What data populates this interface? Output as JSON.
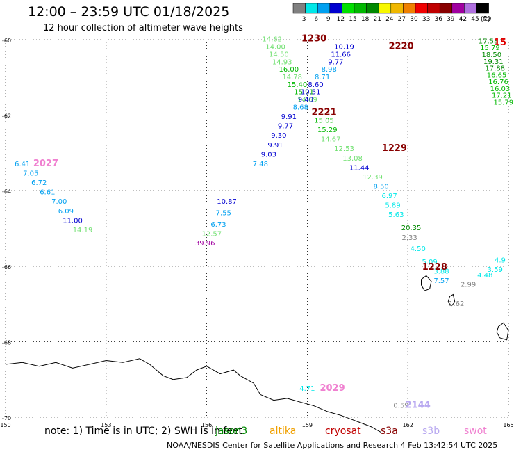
{
  "header": {
    "title": "12:00 – 23:59 UTC 01/18/2025",
    "subtitle": "12 hour collection of altimeter wave heights"
  },
  "legend": {
    "unit": "(ft)",
    "bins": [
      {
        "label": "3",
        "color": "#808080"
      },
      {
        "label": "6",
        "color": "#00e8e8"
      },
      {
        "label": "9",
        "color": "#00a0f0"
      },
      {
        "label": "12",
        "color": "#0000d0"
      },
      {
        "label": "15",
        "color": "#00e000"
      },
      {
        "label": "18",
        "color": "#00b800"
      },
      {
        "label": "21",
        "color": "#008800"
      },
      {
        "label": "24",
        "color": "#f8f800"
      },
      {
        "label": "27",
        "color": "#f0b800"
      },
      {
        "label": "30",
        "color": "#f08000"
      },
      {
        "label": "33",
        "color": "#f00000"
      },
      {
        "label": "36",
        "color": "#c00000"
      },
      {
        "label": "39",
        "color": "#880000"
      },
      {
        "label": "42",
        "color": "#a000a0"
      },
      {
        "label": "45",
        "color": "#b070e0"
      },
      {
        "label": "70",
        "color": "#000000"
      }
    ]
  },
  "axes": {
    "lat_labels": [
      "-60",
      "-62",
      "-64",
      "-66",
      "-68",
      "-70"
    ],
    "lon_labels": [
      "150",
      "153",
      "156",
      "159",
      "162",
      "165"
    ]
  },
  "map": {
    "lon_range": [
      150,
      165
    ],
    "lat_range": [
      -70,
      -60
    ],
    "time_labels": [
      {
        "text": "1230",
        "lon": 159.2,
        "lat": -60.05,
        "color": "#880000"
      },
      {
        "text": "2220",
        "lon": 161.8,
        "lat": -60.25,
        "color": "#880000"
      },
      {
        "text": "2221",
        "lon": 159.5,
        "lat": -62.0,
        "color": "#880000"
      },
      {
        "text": "1229",
        "lon": 161.6,
        "lat": -62.95,
        "color": "#880000"
      },
      {
        "text": "2027",
        "lon": 151.2,
        "lat": -63.35,
        "color": "#f080d0"
      },
      {
        "text": "1228",
        "lon": 162.8,
        "lat": -66.1,
        "color": "#880000"
      },
      {
        "text": "2029",
        "lon": 159.75,
        "lat": -69.3,
        "color": "#f080d0"
      },
      {
        "text": "2144",
        "lon": 162.3,
        "lat": -69.75,
        "color": "#b8a8f0"
      },
      {
        "text": "15",
        "lon": 164.75,
        "lat": -60.15,
        "color": "#e00000"
      }
    ],
    "swh_points": [
      {
        "v": "14.62",
        "lon": 157.95,
        "lat": -60.05,
        "c": "#70e070"
      },
      {
        "v": "14.00",
        "lon": 158.05,
        "lat": -60.25,
        "c": "#70e070"
      },
      {
        "v": "14.50",
        "lon": 158.15,
        "lat": -60.45,
        "c": "#70e070"
      },
      {
        "v": "14.93",
        "lon": 158.25,
        "lat": -60.65,
        "c": "#70e070"
      },
      {
        "v": "16.00",
        "lon": 158.45,
        "lat": -60.85,
        "c": "#00b800"
      },
      {
        "v": "14.78",
        "lon": 158.55,
        "lat": -61.05,
        "c": "#70e070"
      },
      {
        "v": "15.40",
        "lon": 158.7,
        "lat": -61.25,
        "c": "#00b800"
      },
      {
        "v": "15.91",
        "lon": 158.9,
        "lat": -61.45,
        "c": "#00b800"
      },
      {
        "v": "14.69",
        "lon": 159.0,
        "lat": -61.65,
        "c": "#70e070"
      },
      {
        "v": "15.05",
        "lon": 159.5,
        "lat": -62.2,
        "c": "#00b800"
      },
      {
        "v": "15.29",
        "lon": 159.6,
        "lat": -62.45,
        "c": "#00b800"
      },
      {
        "v": "14.67",
        "lon": 159.7,
        "lat": -62.7,
        "c": "#70e070"
      },
      {
        "v": "12.53",
        "lon": 160.1,
        "lat": -62.95,
        "c": "#70e070"
      },
      {
        "v": "13.08",
        "lon": 160.35,
        "lat": -63.2,
        "c": "#70e070"
      },
      {
        "v": "11.44",
        "lon": 160.55,
        "lat": -63.45,
        "c": "#0000d0"
      },
      {
        "v": "12.39",
        "lon": 160.95,
        "lat": -63.7,
        "c": "#70e070"
      },
      {
        "v": "8.50",
        "lon": 161.2,
        "lat": -63.95,
        "c": "#00a0f0"
      },
      {
        "v": "6.97",
        "lon": 161.45,
        "lat": -64.2,
        "c": "#00e8e8"
      },
      {
        "v": "5.89",
        "lon": 161.55,
        "lat": -64.45,
        "c": "#00e8e8"
      },
      {
        "v": "5.63",
        "lon": 161.65,
        "lat": -64.7,
        "c": "#00e8e8"
      },
      {
        "v": "20.35",
        "lon": 162.1,
        "lat": -65.05,
        "c": "#008800"
      },
      {
        "v": "2.33",
        "lon": 162.05,
        "lat": -65.3,
        "c": "#808080"
      },
      {
        "v": "4.50",
        "lon": 162.3,
        "lat": -65.6,
        "c": "#00e8e8"
      },
      {
        "v": "5.09",
        "lon": 162.65,
        "lat": -65.95,
        "c": "#00e8e8"
      },
      {
        "v": "3.88",
        "lon": 163.0,
        "lat": -66.2,
        "c": "#00e8e8"
      },
      {
        "v": "7.57",
        "lon": 163.0,
        "lat": -66.45,
        "c": "#00a0f0"
      },
      {
        "v": "2.99",
        "lon": 163.8,
        "lat": -66.55,
        "c": "#808080"
      },
      {
        "v": "1.62",
        "lon": 163.45,
        "lat": -67.05,
        "c": "#808080"
      },
      {
        "v": "4.48",
        "lon": 164.3,
        "lat": -66.3,
        "c": "#00e8e8"
      },
      {
        "v": "3.59",
        "lon": 164.6,
        "lat": -66.15,
        "c": "#00e8e8"
      },
      {
        "v": "4.9",
        "lon": 164.75,
        "lat": -65.9,
        "c": "#00e8e8"
      },
      {
        "v": "10.19",
        "lon": 160.1,
        "lat": -60.25,
        "c": "#0000d0"
      },
      {
        "v": "11.66",
        "lon": 160.0,
        "lat": -60.45,
        "c": "#0000d0"
      },
      {
        "v": "9.77",
        "lon": 159.85,
        "lat": -60.65,
        "c": "#0000d0"
      },
      {
        "v": "8.98",
        "lon": 159.65,
        "lat": -60.85,
        "c": "#00a0f0"
      },
      {
        "v": "8.71",
        "lon": 159.45,
        "lat": -61.05,
        "c": "#00a0f0"
      },
      {
        "v": "8.60",
        "lon": 159.25,
        "lat": -61.25,
        "c": "#0000d0"
      },
      {
        "v": "10.51",
        "lon": 159.1,
        "lat": -61.45,
        "c": "#0000d0"
      },
      {
        "v": "9.40",
        "lon": 158.95,
        "lat": -61.65,
        "c": "#0000d0"
      },
      {
        "v": "8.68",
        "lon": 158.8,
        "lat": -61.85,
        "c": "#00a0f0"
      },
      {
        "v": "9.91",
        "lon": 158.45,
        "lat": -62.1,
        "c": "#0000d0"
      },
      {
        "v": "9.77",
        "lon": 158.35,
        "lat": -62.35,
        "c": "#0000d0"
      },
      {
        "v": "9.30",
        "lon": 158.15,
        "lat": -62.6,
        "c": "#0000d0"
      },
      {
        "v": "9.91",
        "lon": 158.05,
        "lat": -62.85,
        "c": "#0000d0"
      },
      {
        "v": "9.03",
        "lon": 157.85,
        "lat": -63.1,
        "c": "#0000d0"
      },
      {
        "v": "7.48",
        "lon": 157.6,
        "lat": -63.35,
        "c": "#00a0f0"
      },
      {
        "v": "6.41",
        "lon": 150.5,
        "lat": -63.35,
        "c": "#00a0f0"
      },
      {
        "v": "7.05",
        "lon": 150.75,
        "lat": -63.6,
        "c": "#00a0f0"
      },
      {
        "v": "6.72",
        "lon": 151.0,
        "lat": -63.85,
        "c": "#00a0f0"
      },
      {
        "v": "6.61",
        "lon": 151.25,
        "lat": -64.1,
        "c": "#00a0f0"
      },
      {
        "v": "7.00",
        "lon": 151.6,
        "lat": -64.35,
        "c": "#00a0f0"
      },
      {
        "v": "6.09",
        "lon": 151.8,
        "lat": -64.6,
        "c": "#00a0f0"
      },
      {
        "v": "11.00",
        "lon": 152.0,
        "lat": -64.85,
        "c": "#0000d0"
      },
      {
        "v": "14.19",
        "lon": 152.3,
        "lat": -65.1,
        "c": "#70e070"
      },
      {
        "v": "10.87",
        "lon": 156.6,
        "lat": -64.35,
        "c": "#0000d0"
      },
      {
        "v": "7.55",
        "lon": 156.5,
        "lat": -64.65,
        "c": "#00a0f0"
      },
      {
        "v": "6.73",
        "lon": 156.35,
        "lat": -64.95,
        "c": "#00a0f0"
      },
      {
        "v": "12.57",
        "lon": 156.15,
        "lat": -65.2,
        "c": "#70e070"
      },
      {
        "v": "39.96",
        "lon": 155.95,
        "lat": -65.45,
        "c": "#a000a0"
      },
      {
        "v": "4.71",
        "lon": 159.0,
        "lat": -69.3,
        "c": "#00e8e8"
      },
      {
        "v": "0.59",
        "lon": 161.8,
        "lat": -69.75,
        "c": "#808080"
      },
      {
        "v": "17.58",
        "lon": 164.4,
        "lat": -60.1,
        "c": "#008800"
      },
      {
        "v": "15.79",
        "lon": 164.45,
        "lat": -60.28,
        "c": "#00b800"
      },
      {
        "v": "18.50",
        "lon": 164.5,
        "lat": -60.46,
        "c": "#008800"
      },
      {
        "v": "19.31",
        "lon": 164.55,
        "lat": -60.64,
        "c": "#008800"
      },
      {
        "v": "17.88",
        "lon": 164.6,
        "lat": -60.82,
        "c": "#008800"
      },
      {
        "v": "16.65",
        "lon": 164.65,
        "lat": -61.0,
        "c": "#00b800"
      },
      {
        "v": "16.76",
        "lon": 164.7,
        "lat": -61.18,
        "c": "#00b800"
      },
      {
        "v": "16.03",
        "lon": 164.75,
        "lat": -61.36,
        "c": "#00b800"
      },
      {
        "v": "17.21",
        "lon": 164.8,
        "lat": -61.54,
        "c": "#00b800"
      },
      {
        "v": "15.79",
        "lon": 164.85,
        "lat": -61.72,
        "c": "#00b800"
      }
    ],
    "coastline_islands": [
      [
        [
          162.4,
          -66.35
        ],
        [
          162.55,
          -66.25
        ],
        [
          162.7,
          -66.4
        ],
        [
          162.65,
          -66.6
        ],
        [
          162.5,
          -66.65
        ],
        [
          162.4,
          -66.5
        ]
      ],
      [
        [
          163.25,
          -66.8
        ],
        [
          163.35,
          -66.75
        ],
        [
          163.4,
          -66.95
        ],
        [
          163.3,
          -67.05
        ],
        [
          163.2,
          -66.95
        ]
      ],
      [
        [
          164.7,
          -67.6
        ],
        [
          164.85,
          -67.5
        ],
        [
          165.0,
          -67.7
        ],
        [
          164.95,
          -67.95
        ],
        [
          164.75,
          -67.9
        ],
        [
          164.65,
          -67.75
        ]
      ]
    ],
    "coastline_main": [
      [
        150.0,
        -68.6
      ],
      [
        150.5,
        -68.55
      ],
      [
        151.0,
        -68.65
      ],
      [
        151.5,
        -68.55
      ],
      [
        152.0,
        -68.7
      ],
      [
        152.5,
        -68.6
      ],
      [
        153.0,
        -68.5
      ],
      [
        153.5,
        -68.55
      ],
      [
        154.0,
        -68.45
      ],
      [
        154.3,
        -68.6
      ],
      [
        154.7,
        -68.9
      ],
      [
        155.0,
        -69.0
      ],
      [
        155.4,
        -68.95
      ],
      [
        155.7,
        -68.75
      ],
      [
        156.0,
        -68.65
      ],
      [
        156.4,
        -68.85
      ],
      [
        156.8,
        -68.75
      ],
      [
        157.0,
        -68.9
      ],
      [
        157.4,
        -69.1
      ],
      [
        157.6,
        -69.4
      ],
      [
        158.0,
        -69.55
      ],
      [
        158.4,
        -69.5
      ],
      [
        158.8,
        -69.6
      ],
      [
        159.2,
        -69.7
      ],
      [
        159.6,
        -69.85
      ],
      [
        160.0,
        -69.95
      ],
      [
        160.3,
        -70.05
      ],
      [
        160.6,
        -70.15
      ],
      [
        160.9,
        -70.25
      ],
      [
        161.2,
        -70.4
      ]
    ]
  },
  "footer": {
    "note": "note:  1) Time is in UTC;  2) SWH is in feet",
    "credit": "NOAA/NESDIS Center for Satellite Applications and Research     4 Feb 13:42:54 UTC 2025",
    "missions": [
      {
        "label": "jason3",
        "color": "#008800"
      },
      {
        "label": "altika",
        "color": "#f0a000"
      },
      {
        "label": "cryosat",
        "color": "#c00000"
      },
      {
        "label": "s3a",
        "color": "#880000"
      },
      {
        "label": "s3b",
        "color": "#b8a8f0"
      },
      {
        "label": "swot",
        "color": "#f080d0"
      }
    ]
  }
}
